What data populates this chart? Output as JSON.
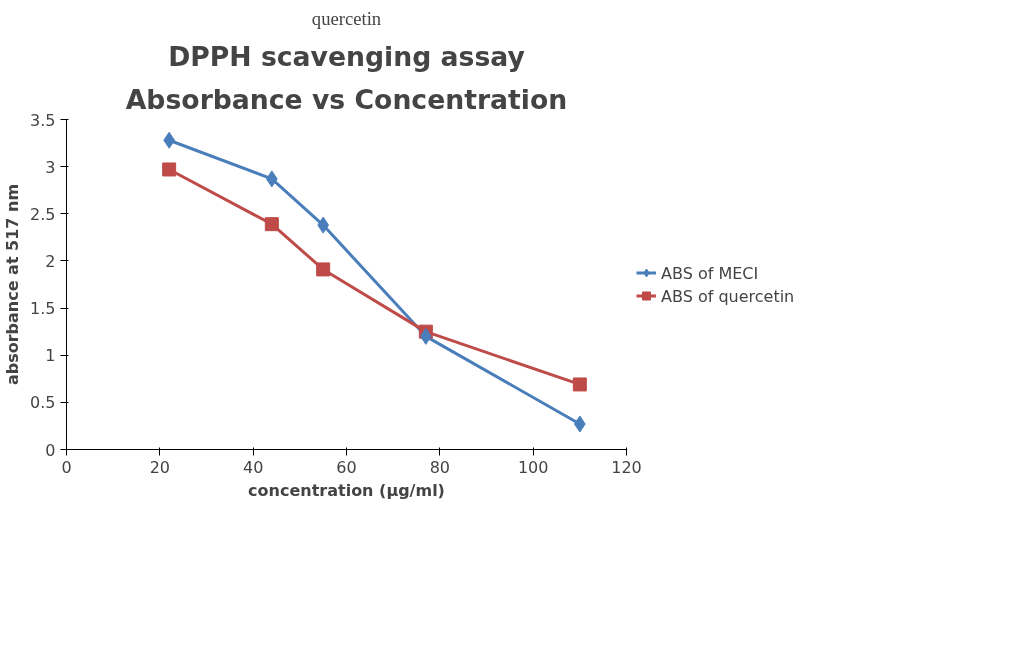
{
  "chart_data": {
    "type": "line",
    "title": "DPPH scavenging assay",
    "subtitle": "Absorbance vs Concentration",
    "xlabel": "concentration (µg/ml)",
    "ylabel": "absorbance at 517 nm",
    "annotations": [
      "quercetin"
    ],
    "x": [
      22,
      44,
      55,
      77,
      110
    ],
    "series": [
      {
        "name": "ABS of MECI",
        "color": "#4a7ebb",
        "marker": "diamond",
        "values": [
          3.28,
          2.87,
          2.38,
          1.2,
          0.27
        ]
      },
      {
        "name": "ABS of quercetin",
        "color": "#be4b48",
        "marker": "square",
        "values": [
          2.97,
          2.39,
          1.91,
          1.25,
          0.69
        ]
      }
    ],
    "xlim": [
      0,
      120
    ],
    "xticks": [
      0,
      20,
      40,
      60,
      80,
      100,
      120
    ],
    "ylim": [
      0,
      3.5
    ],
    "yticks": [
      0,
      0.5,
      1,
      1.5,
      2,
      2.5,
      3,
      3.5
    ],
    "grid": false,
    "legend": "right"
  }
}
